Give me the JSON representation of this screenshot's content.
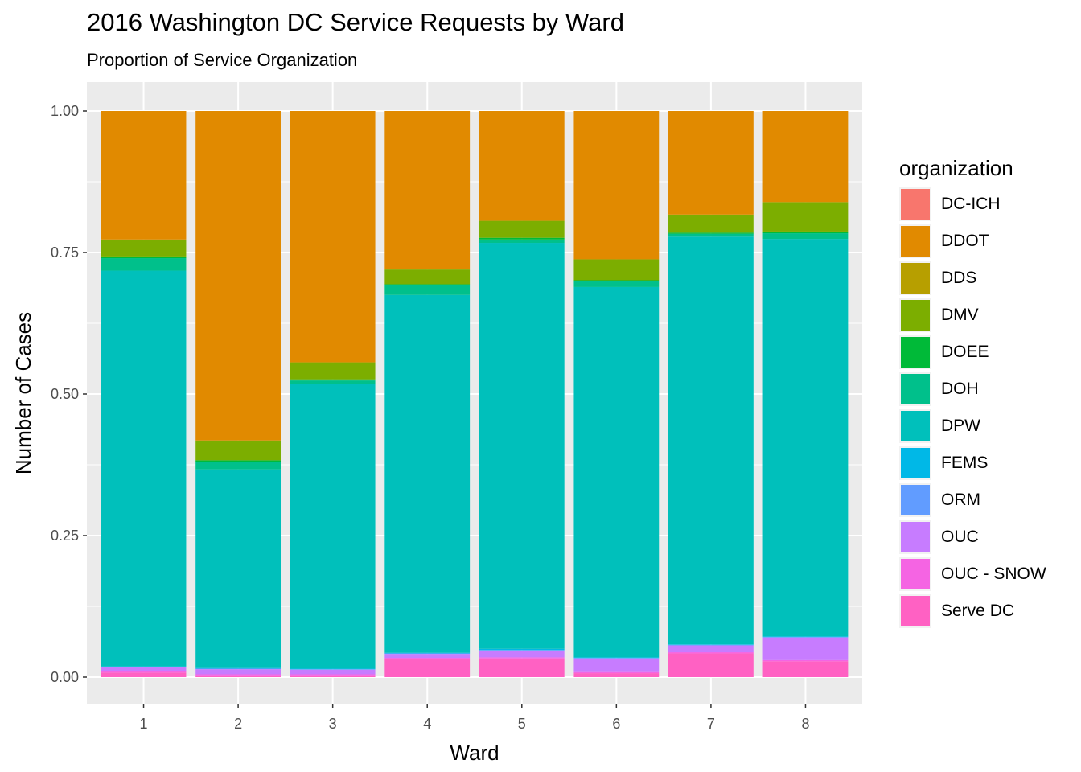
{
  "chart_data": {
    "type": "bar",
    "stacked": true,
    "title": "2016 Washington DC Service Requests by Ward",
    "subtitle": "Proportion of Service Organization",
    "xlabel": "Ward",
    "ylabel": "Number of Cases",
    "categories": [
      "1",
      "2",
      "3",
      "4",
      "5",
      "6",
      "7",
      "8"
    ],
    "ylim": [
      0,
      1
    ],
    "yticks": [
      "0.00",
      "0.25",
      "0.50",
      "0.75",
      "1.00"
    ],
    "legend_title": "organization",
    "legend_position": "right",
    "grid": true,
    "series": [
      {
        "name": "Serve DC",
        "color": "#FF61C3",
        "values": [
          0.008,
          0.003,
          0.003,
          0.032,
          0.033,
          0.007,
          0.042,
          0.028
        ]
      },
      {
        "name": "OUC - SNOW",
        "color": "#F564E3",
        "values": [
          0.002,
          0.002,
          0.002,
          0.002,
          0.002,
          0.002,
          0.002,
          0.002
        ]
      },
      {
        "name": "OUC",
        "color": "#C77CFF",
        "values": [
          0.007,
          0.009,
          0.008,
          0.007,
          0.012,
          0.024,
          0.012,
          0.04
        ]
      },
      {
        "name": "ORM",
        "color": "#619CFF",
        "values": [
          0.001,
          0.001,
          0.001,
          0.001,
          0.001,
          0.001,
          0.001,
          0.001
        ]
      },
      {
        "name": "FEMS",
        "color": "#00B8E7",
        "values": [
          0.001,
          0.001,
          0.001,
          0.001,
          0.002,
          0.001,
          0.001,
          0.001
        ]
      },
      {
        "name": "DPW",
        "color": "#00C0BB",
        "values": [
          0.699,
          0.351,
          0.503,
          0.632,
          0.717,
          0.654,
          0.72,
          0.702
        ]
      },
      {
        "name": "DOH",
        "color": "#00C08B",
        "values": [
          0.022,
          0.013,
          0.006,
          0.017,
          0.006,
          0.01,
          0.005,
          0.01
        ]
      },
      {
        "name": "DOEE",
        "color": "#00BA38",
        "values": [
          0.003,
          0.003,
          0.002,
          0.002,
          0.003,
          0.002,
          0.002,
          0.003
        ]
      },
      {
        "name": "DMV",
        "color": "#7CAE00",
        "values": [
          0.03,
          0.035,
          0.03,
          0.026,
          0.03,
          0.037,
          0.032,
          0.052
        ]
      },
      {
        "name": "DDS",
        "color": "#B79F00",
        "values": [
          0,
          0,
          0,
          0,
          0,
          0,
          0,
          0
        ]
      },
      {
        "name": "DDOT",
        "color": "#E18A00",
        "values": [
          0.227,
          0.582,
          0.444,
          0.28,
          0.194,
          0.262,
          0.183,
          0.161
        ]
      },
      {
        "name": "DC-ICH",
        "color": "#F8766D",
        "values": [
          0,
          0,
          0,
          0,
          0,
          0,
          0,
          0
        ]
      }
    ],
    "legend_order": [
      "DC-ICH",
      "DDOT",
      "DDS",
      "DMV",
      "DOEE",
      "DOH",
      "DPW",
      "FEMS",
      "ORM",
      "OUC",
      "OUC - SNOW",
      "Serve DC"
    ]
  }
}
